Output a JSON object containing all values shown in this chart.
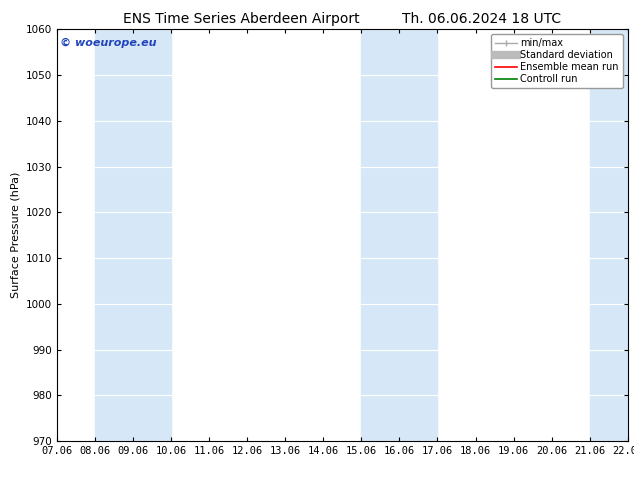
{
  "title_left": "ENS Time Series Aberdeen Airport",
  "title_right": "Th. 06.06.2024 18 UTC",
  "ylabel": "Surface Pressure (hPa)",
  "ylim": [
    970,
    1060
  ],
  "yticks": [
    970,
    980,
    990,
    1000,
    1010,
    1020,
    1030,
    1040,
    1050,
    1060
  ],
  "xtick_labels": [
    "07.06",
    "08.06",
    "09.06",
    "10.06",
    "11.06",
    "12.06",
    "13.06",
    "14.06",
    "15.06",
    "16.06",
    "17.06",
    "18.06",
    "19.06",
    "20.06",
    "21.06",
    "22.06"
  ],
  "shaded_bands": [
    {
      "xstart": 1,
      "xend": 3,
      "color": "#d6e8f7"
    },
    {
      "xstart": 8,
      "xend": 10,
      "color": "#d6e8f7"
    },
    {
      "xstart": 14,
      "xend": 15,
      "color": "#d6e8f7"
    }
  ],
  "watermark": "© woeurope.eu",
  "watermark_color": "#2244bb",
  "legend_items": [
    {
      "label": "min/max"
    },
    {
      "label": "Standard deviation"
    },
    {
      "label": "Ensemble mean run"
    },
    {
      "label": "Controll run"
    }
  ],
  "bg_color": "#ffffff",
  "plot_bg_color": "#ffffff",
  "title_fontsize": 10,
  "ylabel_fontsize": 8,
  "tick_fontsize": 7.5
}
